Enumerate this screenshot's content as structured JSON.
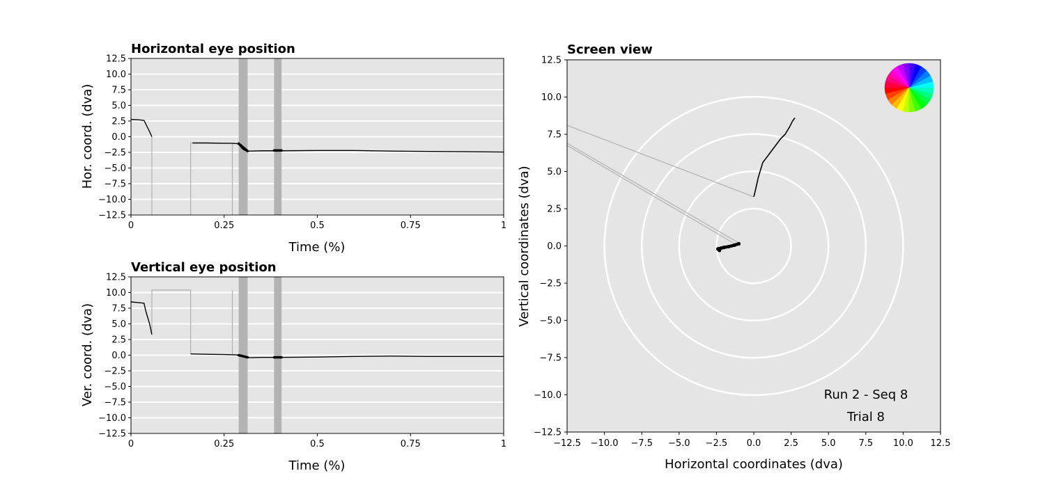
{
  "chart_data": [
    {
      "id": "horizontal",
      "type": "line",
      "title": "Horizontal eye position",
      "xlabel": "Time (%)",
      "ylabel": "Hor. coord. (dva)",
      "xlim": [
        0,
        1
      ],
      "ylim": [
        -12.5,
        12.5
      ],
      "xticks": [
        0,
        0.25,
        0.5,
        0.75,
        1
      ],
      "xtick_labels": [
        "0",
        "0.25",
        "0.5",
        "0.75",
        "1"
      ],
      "yticks": [
        12.5,
        10.0,
        7.5,
        5.0,
        2.5,
        0.0,
        -2.5,
        -5.0,
        -7.5,
        -10.0,
        -12.5
      ],
      "ytick_labels": [
        "12.5",
        "10.0",
        "7.5",
        "5.0",
        "2.5",
        "0.0",
        "−2.5",
        "−5.0",
        "−7.5",
        "−10.0",
        "−12.5"
      ],
      "grid": "horizontal",
      "shaded_spans": [
        [
          0.289,
          0.313
        ],
        [
          0.384,
          0.404
        ]
      ],
      "blink_segments": [
        {
          "x": [
            0.056,
            0.056
          ],
          "y": [
            0.0,
            -12.5
          ]
        },
        {
          "x": [
            0.16,
            0.16,
            0.165
          ],
          "y": [
            -12.5,
            -1.0,
            -1.0
          ]
        },
        {
          "x": [
            0.272,
            0.272
          ],
          "y": [
            -1.0,
            -12.5
          ]
        }
      ],
      "gaze_segments": [
        {
          "x": [
            0.0,
            0.02,
            0.035,
            0.04,
            0.05,
            0.056
          ],
          "y": [
            2.75,
            2.7,
            2.6,
            2.0,
            0.8,
            0.0
          ]
        },
        {
          "x": [
            0.165,
            0.2,
            0.25,
            0.27,
            0.285,
            0.29,
            0.3,
            0.31,
            0.32,
            0.35,
            0.4,
            0.5,
            0.6,
            0.7,
            0.8,
            0.9,
            1.0
          ],
          "y": [
            -1.0,
            -1.0,
            -1.05,
            -1.05,
            -1.1,
            -1.3,
            -2.0,
            -2.3,
            -2.3,
            -2.25,
            -2.25,
            -2.2,
            -2.2,
            -2.3,
            -2.35,
            -2.4,
            -2.45
          ]
        }
      ],
      "fixation_segments": [
        {
          "x": [
            0.289,
            0.313
          ],
          "y": [
            -1.1,
            -2.3
          ]
        },
        {
          "x": [
            0.384,
            0.404
          ],
          "y": [
            -2.2,
            -2.2
          ]
        }
      ]
    },
    {
      "id": "vertical",
      "type": "line",
      "title": "Vertical eye position",
      "xlabel": "Time (%)",
      "ylabel": "Ver. coord. (dva)",
      "xlim": [
        0,
        1
      ],
      "ylim": [
        -12.5,
        12.5
      ],
      "xticks": [
        0,
        0.25,
        0.5,
        0.75,
        1
      ],
      "xtick_labels": [
        "0",
        "0.25",
        "0.5",
        "0.75",
        "1"
      ],
      "yticks": [
        12.5,
        10.0,
        7.5,
        5.0,
        2.5,
        0.0,
        -2.5,
        -5.0,
        -7.5,
        -10.0,
        -12.5
      ],
      "ytick_labels": [
        "12.5",
        "10.0",
        "7.5",
        "5.0",
        "2.5",
        "0.0",
        "−2.5",
        "−5.0",
        "−7.5",
        "−10.0",
        "−12.5"
      ],
      "grid": "horizontal",
      "shaded_spans": [
        [
          0.289,
          0.313
        ],
        [
          0.384,
          0.404
        ]
      ],
      "blink_segments": [
        {
          "x": [
            0.056,
            0.056,
            0.16,
            0.16
          ],
          "y": [
            3.5,
            10.4,
            10.4,
            0.2
          ]
        },
        {
          "x": [
            0.272,
            0.272
          ],
          "y": [
            0.1,
            10.4
          ]
        }
      ],
      "gaze_segments": [
        {
          "x": [
            0.0,
            0.02,
            0.035,
            0.04,
            0.045,
            0.05,
            0.056
          ],
          "y": [
            8.5,
            8.4,
            8.3,
            7.0,
            6.0,
            5.0,
            3.3
          ]
        },
        {
          "x": [
            0.16,
            0.2,
            0.25,
            0.28,
            0.29,
            0.3,
            0.31,
            0.32,
            0.35,
            0.4,
            0.5,
            0.6,
            0.7,
            0.8,
            0.9,
            1.0
          ],
          "y": [
            0.2,
            0.15,
            0.1,
            0.05,
            0.0,
            -0.2,
            -0.4,
            -0.4,
            -0.35,
            -0.35,
            -0.3,
            -0.2,
            -0.15,
            -0.2,
            -0.2,
            -0.2
          ]
        }
      ],
      "fixation_segments": [
        {
          "x": [
            0.289,
            0.313
          ],
          "y": [
            0.0,
            -0.35
          ]
        },
        {
          "x": [
            0.384,
            0.404
          ],
          "y": [
            -0.35,
            -0.35
          ]
        }
      ]
    },
    {
      "id": "screen",
      "type": "scatter",
      "title": "Screen view",
      "xlabel": "Horizontal coordinates (dva)",
      "ylabel": "Vertical coordinates (dva)",
      "xlim": [
        -12.5,
        12.5
      ],
      "ylim": [
        -12.5,
        12.5
      ],
      "xticks": [
        -12.5,
        -10.0,
        -7.5,
        -5.0,
        -2.5,
        0.0,
        2.5,
        5.0,
        7.5,
        10.0,
        12.5
      ],
      "xtick_labels": [
        "−12.5",
        "−10.0",
        "−7.5",
        "−5.0",
        "−2.5",
        "0.0",
        "2.5",
        "5.0",
        "7.5",
        "10.0",
        "12.5"
      ],
      "yticks": [
        12.5,
        10.0,
        7.5,
        5.0,
        2.5,
        0.0,
        -2.5,
        -5.0,
        -7.5,
        -10.0,
        -12.5
      ],
      "ytick_labels": [
        "12.5",
        "10.0",
        "7.5",
        "5.0",
        "2.5",
        "0.0",
        "−2.5",
        "−5.0",
        "−7.5",
        "−10.0",
        "−12.5"
      ],
      "circle_radii": [
        2.5,
        5.0,
        7.5,
        10.0
      ],
      "gaze_path": {
        "x": [
          0.0,
          0.1,
          0.3,
          0.6,
          0.9,
          1.2,
          1.5,
          1.8,
          2.1,
          2.4,
          2.6,
          2.75
        ],
        "y": [
          3.3,
          3.7,
          4.6,
          5.6,
          6.0,
          6.4,
          6.8,
          7.2,
          7.5,
          8.0,
          8.4,
          8.6
        ]
      },
      "blink_lines": [
        {
          "x": [
            0.0,
            -12.5
          ],
          "y": [
            3.3,
            8.1
          ]
        },
        {
          "x": [
            -1.0,
            -12.5
          ],
          "y": [
            0.2,
            6.9
          ]
        },
        {
          "x": [
            -1.2,
            -12.5
          ],
          "y": [
            0.1,
            6.75
          ]
        }
      ],
      "fixation_path": {
        "x": [
          -1.0,
          -1.3,
          -1.7,
          -2.0,
          -2.2,
          -2.4,
          -2.3
        ],
        "y": [
          0.15,
          0.05,
          -0.05,
          -0.1,
          -0.15,
          -0.2,
          -0.3
        ]
      },
      "annotations": [
        "Run 2 - Seq 8",
        "Trial 8"
      ],
      "colors": {
        "axes_bg": "#e5e5e5",
        "grid": "#ffffff",
        "gaze": "#000000",
        "blink": "#b0b0b0",
        "span": "#b3b3b3"
      }
    }
  ]
}
